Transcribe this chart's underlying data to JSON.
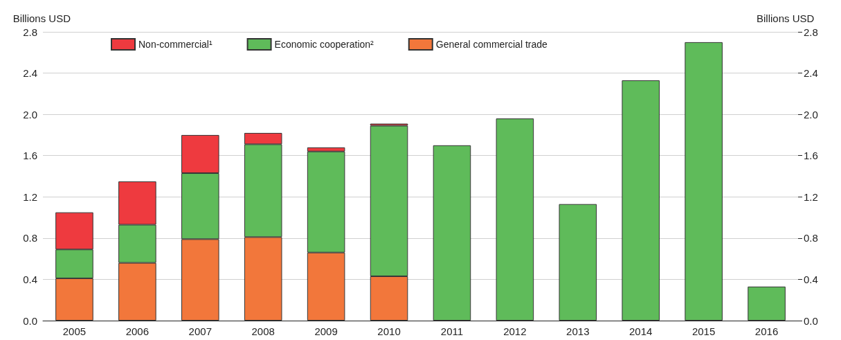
{
  "chart_data": {
    "type": "bar",
    "stacked": true,
    "ylabel": "Billions USD",
    "y2label": "Billions USD",
    "categories": [
      "2005",
      "2006",
      "2007",
      "2008",
      "2009",
      "2010",
      "2011",
      "2012",
      "2013",
      "2014",
      "2015",
      "2016"
    ],
    "series": [
      {
        "name": "General commercial trade",
        "color": "#f2773b",
        "values": [
          0.41,
          0.56,
          0.79,
          0.81,
          0.66,
          0.43,
          0,
          0,
          0,
          0,
          0,
          0
        ]
      },
      {
        "name": "Economic cooperation²",
        "color": "#5fbb5a",
        "values": [
          0.28,
          0.37,
          0.64,
          0.9,
          0.98,
          1.46,
          1.7,
          1.96,
          1.13,
          2.33,
          2.7,
          0.33
        ]
      },
      {
        "name": "Non-commercial¹",
        "color": "#ee3a3f",
        "values": [
          0.36,
          0.42,
          0.37,
          0.11,
          0.04,
          0.02,
          null,
          0,
          0,
          0,
          0,
          0
        ]
      }
    ],
    "ylim": [
      0,
      2.8
    ],
    "yticks": [
      {
        "value": 0,
        "label": "0.0"
      },
      0.4,
      0.8,
      1.2,
      1.6,
      {
        "value": 2,
        "label": "2.0"
      },
      2.4,
      2.8
    ],
    "y2lim": [
      0,
      2.8
    ],
    "y2ticks": [
      {
        "value": 0,
        "label": "0.0"
      },
      0.4,
      0.8,
      1.2,
      1.6,
      {
        "value": 2,
        "label": "2.0"
      },
      2.4,
      2.8
    ],
    "grid": "y",
    "legend": "top left"
  }
}
